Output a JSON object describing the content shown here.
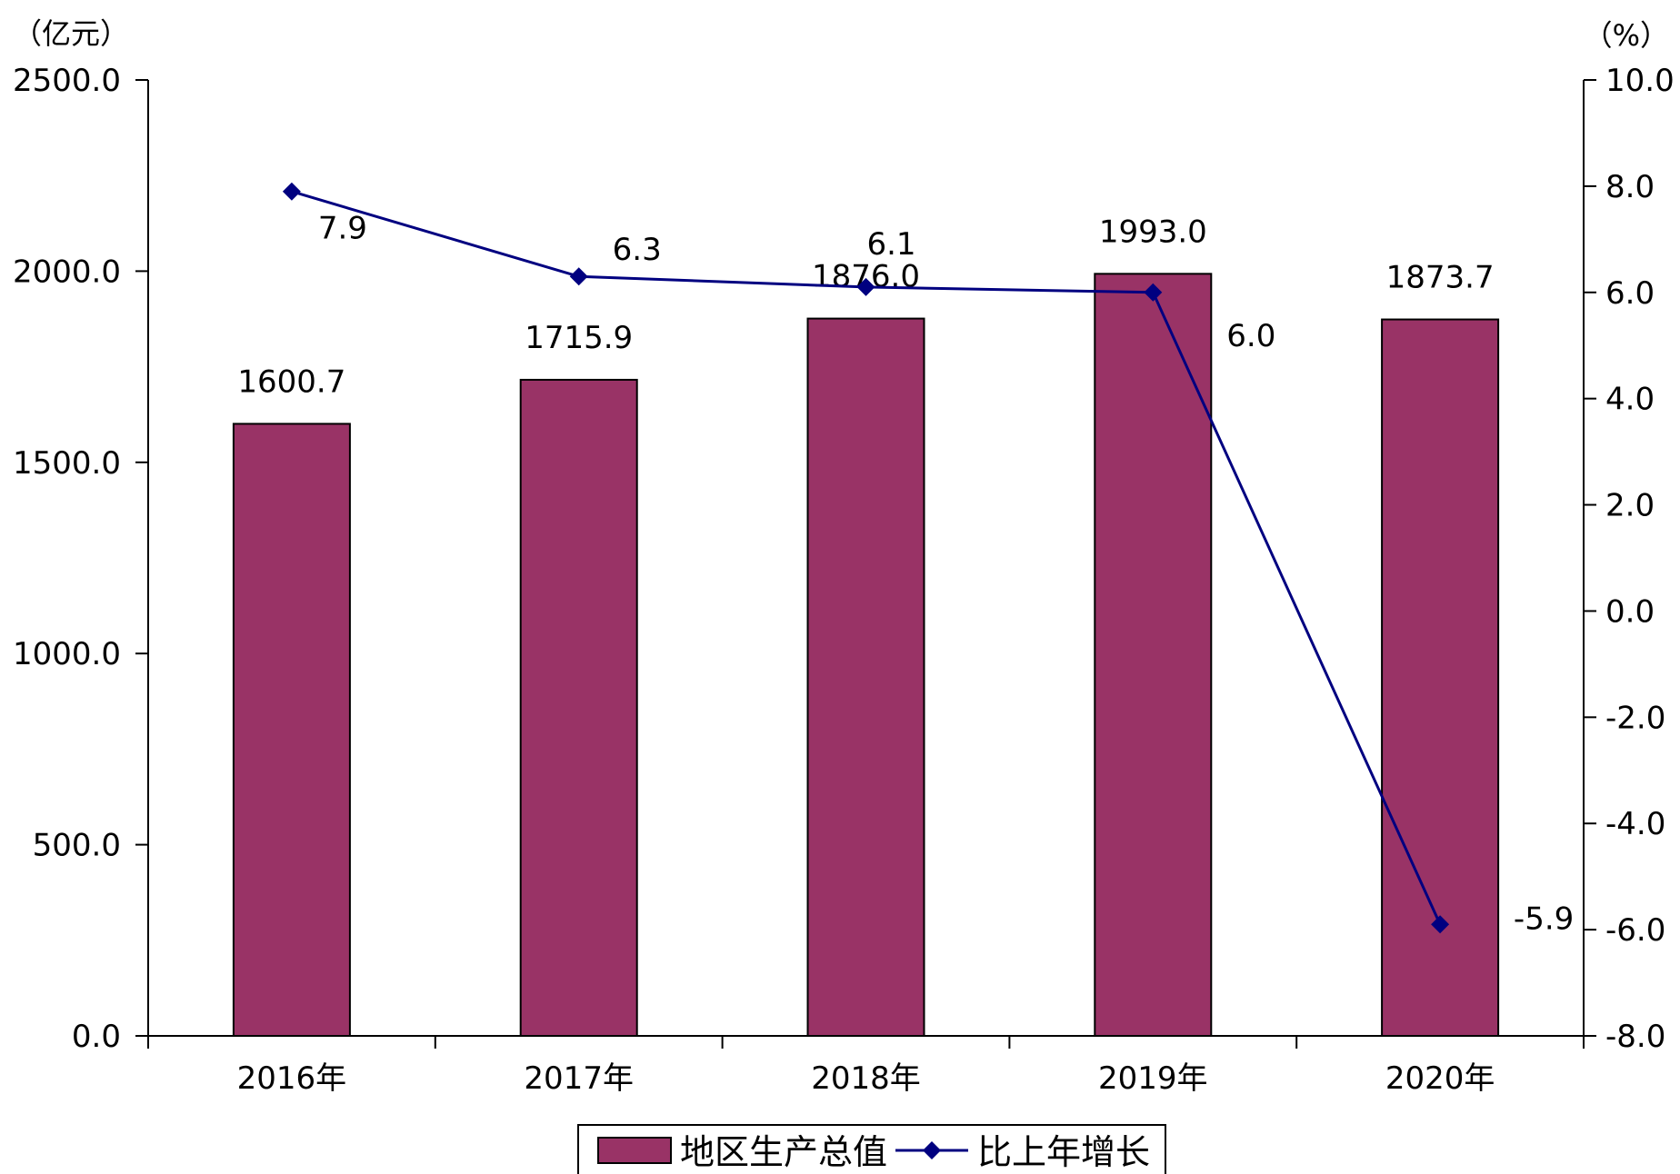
{
  "chart_data": {
    "type": "bar+line",
    "categories": [
      "2016年",
      "2017年",
      "2018年",
      "2019年",
      "2020年"
    ],
    "series": [
      {
        "name": "地区生产总值",
        "type": "bar",
        "axis": "left",
        "values": [
          1600.7,
          1715.9,
          1876.0,
          1993.0,
          1873.7
        ],
        "labels": [
          "1600.7",
          "1715.9",
          "1876.0",
          "1993.0",
          "1873.7"
        ],
        "color": "#993366"
      },
      {
        "name": "比上年增长",
        "type": "line",
        "axis": "right",
        "values": [
          7.9,
          6.3,
          6.1,
          6.0,
          -5.9
        ],
        "labels": [
          "7.9",
          "6.3",
          "6.1",
          "6.0",
          "-5.9"
        ],
        "color": "#000080"
      }
    ],
    "left_axis": {
      "unit": "（亿元）",
      "range": [
        0,
        2500
      ],
      "ticks": [
        "0.0",
        "500.0",
        "1000.0",
        "1500.0",
        "2000.0",
        "2500.0"
      ]
    },
    "right_axis": {
      "unit": "（%）",
      "range": [
        -8,
        10
      ],
      "ticks": [
        "-8.0",
        "-6.0",
        "-4.0",
        "-2.0",
        "0.0",
        "2.0",
        "4.0",
        "6.0",
        "8.0",
        "10.0"
      ]
    },
    "grid": false,
    "legend_position": "bottom"
  }
}
